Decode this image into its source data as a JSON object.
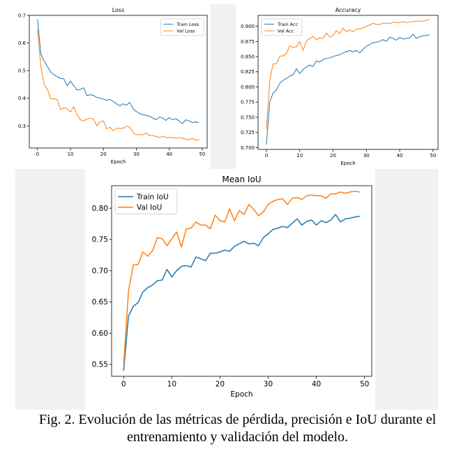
{
  "figure": {
    "caption": "Fig. 2. Evolución de las métricas de pérdida, precisión e IoU durante el entrenamiento y validación del modelo."
  },
  "chart_data": [
    {
      "type": "line",
      "title": "Loss",
      "xlabel": "Epoch",
      "ylabel": "",
      "xlim": [
        -2.5,
        51.5
      ],
      "ylim": [
        0.22,
        0.7
      ],
      "xticks": [
        0,
        10,
        20,
        30,
        40,
        50
      ],
      "yticks": [
        0.3,
        0.4,
        0.5,
        0.6,
        0.7
      ],
      "ytick_decimals": 1,
      "legend": "top-right",
      "grid": false,
      "x": [
        0,
        1,
        2,
        3,
        4,
        5,
        6,
        7,
        8,
        9,
        10,
        11,
        12,
        13,
        14,
        15,
        16,
        17,
        18,
        19,
        20,
        21,
        22,
        23,
        24,
        25,
        26,
        27,
        28,
        29,
        30,
        31,
        32,
        33,
        34,
        35,
        36,
        37,
        38,
        39,
        40,
        41,
        42,
        43,
        44,
        45,
        46,
        47,
        48,
        49
      ],
      "series": [
        {
          "name": "Train Loss",
          "color": "#1f77b4",
          "values": [
            0.685,
            0.56,
            0.535,
            0.515,
            0.495,
            0.485,
            0.478,
            0.472,
            0.47,
            0.445,
            0.462,
            0.445,
            0.43,
            0.432,
            0.438,
            0.41,
            0.413,
            0.41,
            0.403,
            0.4,
            0.397,
            0.393,
            0.396,
            0.388,
            0.38,
            0.373,
            0.38,
            0.375,
            0.385,
            0.362,
            0.352,
            0.345,
            0.34,
            0.338,
            0.335,
            0.328,
            0.322,
            0.332,
            0.328,
            0.32,
            0.33,
            0.322,
            0.326,
            0.318,
            0.308,
            0.322,
            0.318,
            0.312,
            0.315,
            0.312
          ]
        },
        {
          "name": "Val Loss",
          "color": "#ff7f0e",
          "values": [
            0.65,
            0.515,
            0.45,
            0.432,
            0.398,
            0.398,
            0.396,
            0.358,
            0.366,
            0.362,
            0.35,
            0.37,
            0.34,
            0.322,
            0.318,
            0.325,
            0.328,
            0.325,
            0.3,
            0.315,
            0.318,
            0.29,
            0.295,
            0.282,
            0.292,
            0.29,
            0.292,
            0.299,
            0.296,
            0.275,
            0.268,
            0.268,
            0.268,
            0.275,
            0.265,
            0.265,
            0.262,
            0.258,
            0.262,
            0.258,
            0.258,
            0.258,
            0.255,
            0.258,
            0.255,
            0.252,
            0.25,
            0.255,
            0.248,
            0.25
          ]
        }
      ]
    },
    {
      "type": "line",
      "title": "Accuracy",
      "xlabel": "Epoch",
      "ylabel": "",
      "xlim": [
        -2.5,
        51.5
      ],
      "ylim": [
        0.697,
        0.918
      ],
      "xticks": [
        0,
        10,
        20,
        30,
        40,
        50
      ],
      "yticks": [
        0.7,
        0.725,
        0.75,
        0.775,
        0.8,
        0.825,
        0.85,
        0.875,
        0.9
      ],
      "ytick_decimals": 3,
      "legend": "top-left",
      "grid": false,
      "x": [
        0,
        1,
        2,
        3,
        4,
        5,
        6,
        7,
        8,
        9,
        10,
        11,
        12,
        13,
        14,
        15,
        16,
        17,
        18,
        19,
        20,
        21,
        22,
        23,
        24,
        25,
        26,
        27,
        28,
        29,
        30,
        31,
        32,
        33,
        34,
        35,
        36,
        37,
        38,
        39,
        40,
        41,
        42,
        43,
        44,
        45,
        46,
        47,
        48,
        49
      ],
      "series": [
        {
          "name": "Train Acc",
          "color": "#1f77b4",
          "values": [
            0.705,
            0.775,
            0.79,
            0.795,
            0.806,
            0.811,
            0.814,
            0.818,
            0.82,
            0.83,
            0.822,
            0.829,
            0.833,
            0.836,
            0.834,
            0.843,
            0.841,
            0.845,
            0.847,
            0.848,
            0.85,
            0.852,
            0.853,
            0.856,
            0.858,
            0.86,
            0.858,
            0.86,
            0.856,
            0.862,
            0.867,
            0.87,
            0.873,
            0.874,
            0.875,
            0.878,
            0.875,
            0.882,
            0.88,
            0.877,
            0.882,
            0.879,
            0.88,
            0.881,
            0.887,
            0.88,
            0.883,
            0.884,
            0.885,
            0.886
          ]
        },
        {
          "name": "Val Acc",
          "color": "#ff7f0e",
          "values": [
            0.73,
            0.81,
            0.838,
            0.838,
            0.851,
            0.851,
            0.855,
            0.868,
            0.865,
            0.866,
            0.875,
            0.86,
            0.876,
            0.88,
            0.883,
            0.878,
            0.881,
            0.88,
            0.889,
            0.882,
            0.885,
            0.893,
            0.888,
            0.897,
            0.891,
            0.894,
            0.891,
            0.895,
            0.896,
            0.897,
            0.9,
            0.902,
            0.905,
            0.903,
            0.903,
            0.905,
            0.905,
            0.904,
            0.907,
            0.906,
            0.906,
            0.908,
            0.906,
            0.907,
            0.908,
            0.908,
            0.909,
            0.908,
            0.91,
            0.911
          ]
        }
      ]
    },
    {
      "type": "line",
      "title": "Mean IoU",
      "xlabel": "Epoch",
      "ylabel": "",
      "xlim": [
        -2.5,
        51.5
      ],
      "ylim": [
        0.531,
        0.836
      ],
      "xticks": [
        0,
        10,
        20,
        30,
        40,
        50
      ],
      "yticks": [
        0.55,
        0.6,
        0.65,
        0.7,
        0.75,
        0.8
      ],
      "ytick_decimals": 2,
      "legend": "top-left",
      "grid": false,
      "x": [
        0,
        1,
        2,
        3,
        4,
        5,
        6,
        7,
        8,
        9,
        10,
        11,
        12,
        13,
        14,
        15,
        16,
        17,
        18,
        19,
        20,
        21,
        22,
        23,
        24,
        25,
        26,
        27,
        28,
        29,
        30,
        31,
        32,
        33,
        34,
        35,
        36,
        37,
        38,
        39,
        40,
        41,
        42,
        43,
        44,
        45,
        46,
        47,
        48,
        49
      ],
      "series": [
        {
          "name": "Train IoU",
          "color": "#1f77b4",
          "values": [
            0.54,
            0.627,
            0.643,
            0.649,
            0.666,
            0.673,
            0.677,
            0.684,
            0.685,
            0.702,
            0.69,
            0.7,
            0.707,
            0.708,
            0.706,
            0.722,
            0.719,
            0.716,
            0.728,
            0.728,
            0.73,
            0.733,
            0.731,
            0.739,
            0.743,
            0.747,
            0.743,
            0.744,
            0.74,
            0.753,
            0.759,
            0.766,
            0.768,
            0.771,
            0.769,
            0.776,
            0.783,
            0.773,
            0.779,
            0.781,
            0.773,
            0.78,
            0.777,
            0.781,
            0.79,
            0.778,
            0.783,
            0.784,
            0.786,
            0.787
          ]
        },
        {
          "name": "Val IoU",
          "color": "#ff7f0e",
          "values": [
            0.548,
            0.667,
            0.709,
            0.71,
            0.73,
            0.723,
            0.732,
            0.753,
            0.751,
            0.74,
            0.751,
            0.762,
            0.738,
            0.767,
            0.768,
            0.778,
            0.773,
            0.773,
            0.767,
            0.789,
            0.78,
            0.778,
            0.799,
            0.78,
            0.796,
            0.79,
            0.806,
            0.798,
            0.788,
            0.794,
            0.806,
            0.811,
            0.814,
            0.815,
            0.806,
            0.816,
            0.817,
            0.814,
            0.82,
            0.821,
            0.82,
            0.82,
            0.816,
            0.823,
            0.823,
            0.826,
            0.824,
            0.826,
            0.827,
            0.826
          ]
        }
      ]
    }
  ]
}
